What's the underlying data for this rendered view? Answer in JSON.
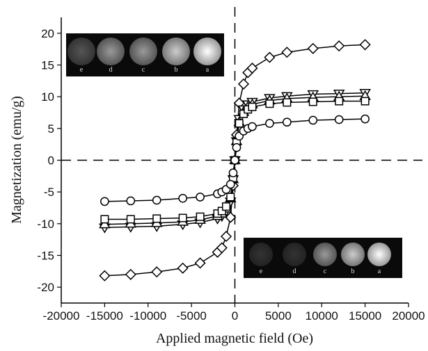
{
  "chart_data": {
    "type": "line",
    "x_label": "Applied magnetic field (Oe)",
    "y_label": "Magnetization (emu/g)",
    "x": [
      -15000,
      -12000,
      -9000,
      -6000,
      -4000,
      -2000,
      -1500,
      -1000,
      -500,
      -200,
      0,
      200,
      500,
      1000,
      1500,
      2000,
      4000,
      6000,
      9000,
      12000,
      15000
    ],
    "series": [
      {
        "color": "#000000",
        "marker": "diamond",
        "values": [
          -18.2,
          -18,
          -17.6,
          -17,
          -16.2,
          -14.5,
          -13.8,
          -12,
          -9,
          -4,
          0,
          4,
          9,
          12,
          13.8,
          14.5,
          16.2,
          17,
          17.6,
          18,
          18.2
        ]
      },
      {
        "color": "#000000",
        "marker": "triangle-down",
        "values": [
          -10.6,
          -10.5,
          -10.4,
          -10.1,
          -9.8,
          -9.2,
          -8.8,
          -8,
          -6.5,
          -3,
          0,
          3,
          6.5,
          8,
          8.8,
          9.2,
          9.8,
          10.1,
          10.4,
          10.5,
          10.6
        ]
      },
      {
        "color": "#000000",
        "marker": "triangle-up",
        "values": [
          -10.1,
          -10,
          -9.9,
          -9.7,
          -9.4,
          -8.8,
          -8.4,
          -7.6,
          -6,
          -3,
          0,
          3,
          6,
          7.6,
          8.4,
          8.8,
          9.4,
          9.7,
          9.9,
          10,
          10.1
        ]
      },
      {
        "color": "#000000",
        "marker": "square",
        "values": [
          -9.3,
          -9.3,
          -9.2,
          -9.1,
          -8.9,
          -8.4,
          -8,
          -7.3,
          -5.8,
          -2.8,
          0,
          2.8,
          5.8,
          7.3,
          8,
          8.4,
          8.9,
          9.1,
          9.2,
          9.3,
          9.3
        ]
      },
      {
        "color": "#000000",
        "marker": "circle",
        "values": [
          -6.5,
          -6.4,
          -6.3,
          -6,
          -5.8,
          -5.3,
          -5,
          -4.6,
          -3.8,
          -2,
          0,
          2,
          3.8,
          4.6,
          5,
          5.3,
          5.8,
          6,
          6.3,
          6.4,
          6.5
        ]
      }
    ],
    "xlim": [
      -20000,
      20000
    ],
    "xticks": [
      -20000,
      -15000,
      -10000,
      -5000,
      0,
      5000,
      10000,
      15000,
      20000
    ],
    "ylim": [
      -22.5,
      22.5
    ],
    "yticks": [
      -20,
      -15,
      -10,
      -5,
      0,
      5,
      10,
      15,
      20
    ],
    "zero_lines": true,
    "insets": [
      {
        "labels": [
          "e",
          "d",
          "c",
          "b",
          "a"
        ]
      },
      {
        "labels": [
          "e",
          "d",
          "c",
          "b",
          "a"
        ]
      }
    ]
  }
}
